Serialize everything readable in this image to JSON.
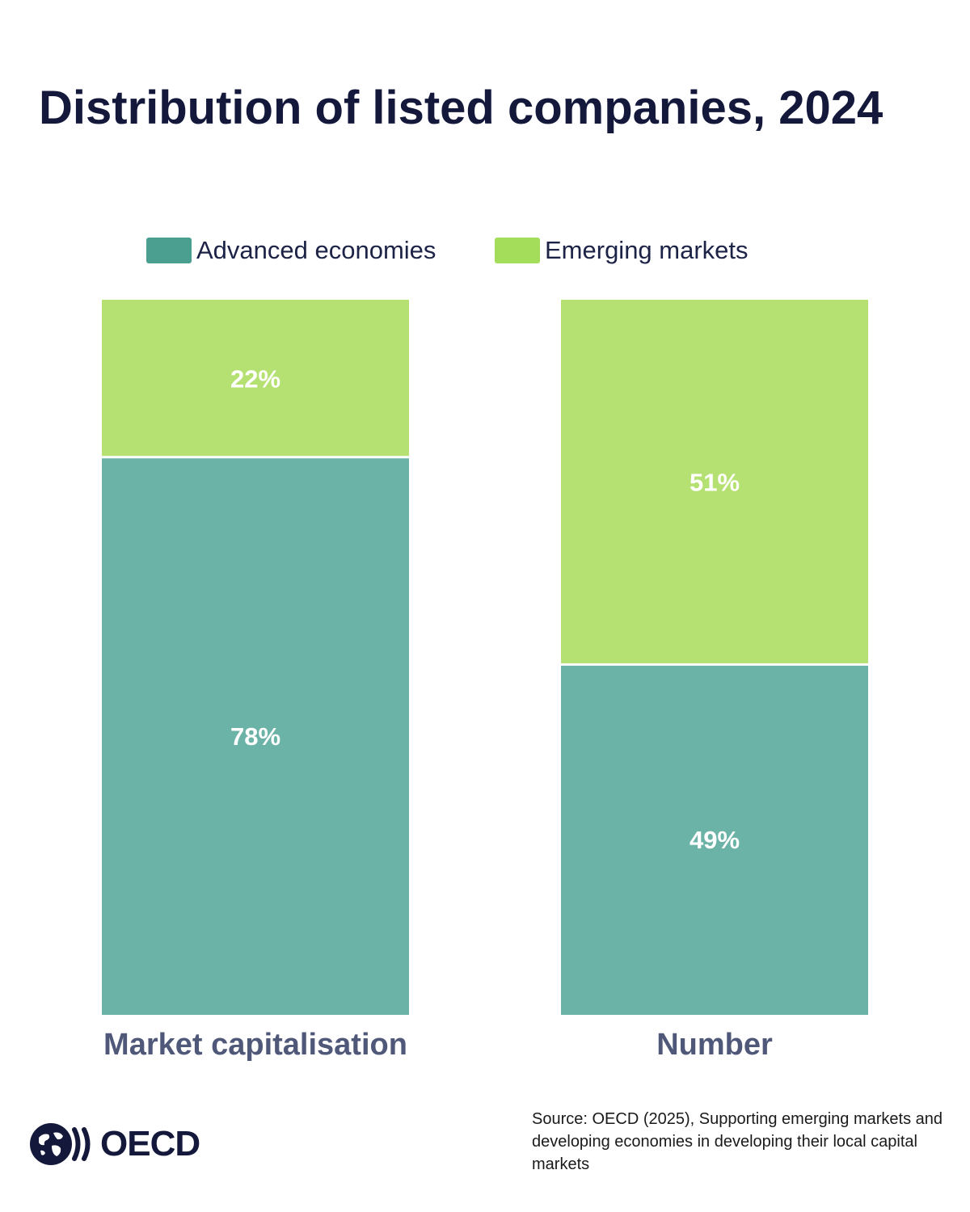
{
  "title": "Distribution of listed companies, 2024",
  "colors": {
    "advanced": "#6cb3a7",
    "advanced_legend": "#4a9f91",
    "emerging": "#b5e173",
    "emerging_legend": "#a4dd5a",
    "title": "#14193c",
    "axis_label": "#4f5878"
  },
  "chart_data": {
    "type": "bar",
    "stacked": true,
    "percent": true,
    "categories": [
      "Market capitalisation",
      "Number"
    ],
    "series": [
      {
        "name": "Advanced economies",
        "values": [
          78,
          49
        ],
        "labels": [
          "78%",
          "49%"
        ]
      },
      {
        "name": "Emerging markets",
        "values": [
          22,
          51
        ],
        "labels": [
          "22%",
          "51%"
        ]
      }
    ],
    "ylim": [
      0,
      100
    ],
    "legend": "top-center",
    "grid": false,
    "xlabel": "",
    "ylabel": ""
  },
  "source": "Source: OECD (2025), Supporting emerging markets and developing economies in developing their local capital markets",
  "logo": {
    "text": "OECD",
    "icon": "oecd-globe-icon"
  }
}
